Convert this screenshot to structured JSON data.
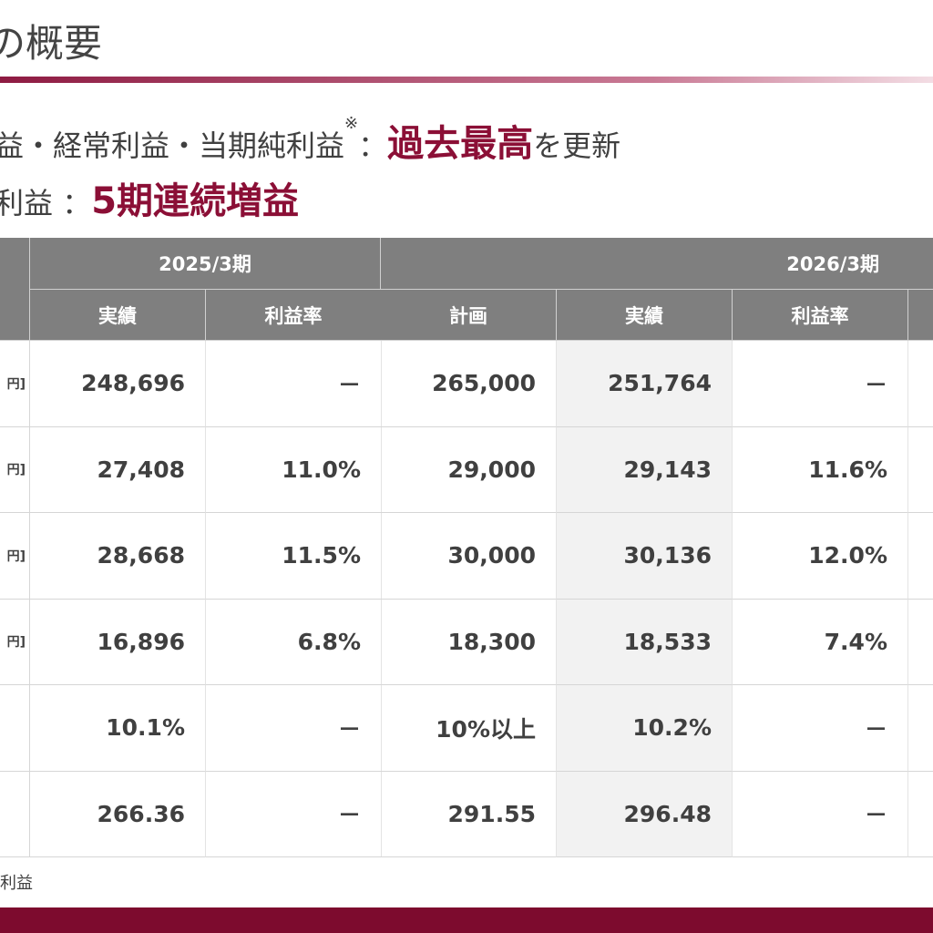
{
  "header": {
    "title": "の概要"
  },
  "highlights": [
    {
      "prefix": "益・経常利益・当期純利益",
      "note": "※",
      "sep": "：",
      "emphasis": "過去最高",
      "suffix": "を更新"
    },
    {
      "prefix": "利益",
      "sep": "：",
      "emphasis": "5期連続増益"
    }
  ],
  "table": {
    "groups": [
      "2025/3期",
      "2026/3期"
    ],
    "columns": [
      "実績",
      "利益率",
      "計画",
      "実績",
      "利益率"
    ],
    "rows": [
      {
        "unit": "円]",
        "cells": [
          "248,696",
          "－",
          "265,000",
          "251,764",
          "－"
        ]
      },
      {
        "unit": "円]",
        "cells": [
          "27,408",
          "11.0%",
          "29,000",
          "29,143",
          "11.6%"
        ]
      },
      {
        "unit": "円]",
        "cells": [
          "28,668",
          "11.5%",
          "30,000",
          "30,136",
          "12.0%"
        ]
      },
      {
        "unit": "円]",
        "cells": [
          "16,896",
          "6.8%",
          "18,300",
          "18,533",
          "7.4%"
        ]
      },
      {
        "cells": [
          "10.1%",
          "－",
          "10%以上",
          "10.2%",
          "－"
        ]
      },
      {
        "cells": [
          "266.36",
          "－",
          "291.55",
          "296.48",
          "－"
        ]
      }
    ]
  },
  "footnote": "利益"
}
